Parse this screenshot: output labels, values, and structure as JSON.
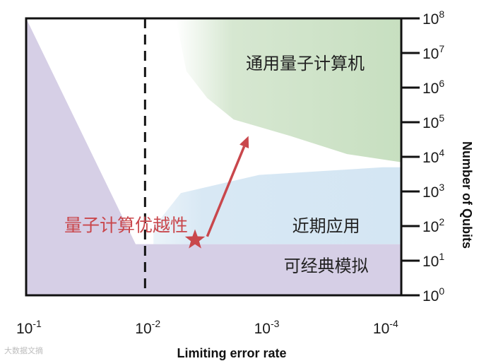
{
  "chart_data": {
    "type": "area",
    "xlabel": "Limiting error rate",
    "ylabel": "Number of Qubits",
    "x_scale": "log-reversed",
    "y_scale": "log",
    "xlim": [
      0.1,
      7e-05
    ],
    "ylim": [
      1,
      100000000
    ],
    "x_ticks": [
      {
        "value": 0.1,
        "base": "10",
        "exp": "-1"
      },
      {
        "value": 0.01,
        "base": "10",
        "exp": "-2"
      },
      {
        "value": 0.001,
        "base": "10",
        "exp": "-3"
      },
      {
        "value": 0.0001,
        "base": "10",
        "exp": "-4"
      }
    ],
    "y_ticks": [
      {
        "value": 1,
        "base": "10",
        "exp": "0"
      },
      {
        "value": 10,
        "base": "10",
        "exp": "1"
      },
      {
        "value": 100,
        "base": "10",
        "exp": "2"
      },
      {
        "value": 1000,
        "base": "10",
        "exp": "3"
      },
      {
        "value": 10000,
        "base": "10",
        "exp": "4"
      },
      {
        "value": 100000,
        "base": "10",
        "exp": "5"
      },
      {
        "value": 1000000,
        "base": "10",
        "exp": "6"
      },
      {
        "value": 10000000,
        "base": "10",
        "exp": "7"
      },
      {
        "value": 100000000,
        "base": "10",
        "exp": "8"
      }
    ],
    "regions": [
      {
        "name": "可经典模拟",
        "color": "#d6cfe6",
        "polygon": [
          [
            0.1,
            100000000
          ],
          [
            0.012,
            30
          ],
          [
            7e-05,
            30
          ],
          [
            7e-05,
            1
          ],
          [
            0.1,
            1
          ]
        ],
        "label_at": [
          0.0003,
          7
        ]
      },
      {
        "name": "近期应用",
        "color": "#d8e8f4",
        "polygon": [
          [
            0.0085,
            90
          ],
          [
            0.005,
            900
          ],
          [
            0.0011,
            3000
          ],
          [
            0.0001,
            5000
          ],
          [
            7e-05,
            5000
          ],
          [
            7e-05,
            30
          ],
          [
            0.0085,
            30
          ]
        ],
        "label_at": [
          0.0003,
          100
        ]
      },
      {
        "name": "通用量子计算机",
        "color": "#cfe3c9",
        "polygon": [
          [
            0.0055,
            100000000
          ],
          [
            0.0045,
            3000000
          ],
          [
            0.003,
            500000
          ],
          [
            0.0018,
            120000
          ],
          [
            0.0006,
            40000
          ],
          [
            0.0002,
            12000
          ],
          [
            7e-05,
            7000
          ],
          [
            7e-05,
            100000000
          ]
        ],
        "label_at": [
          0.00045,
          5000000
        ]
      }
    ],
    "threshold_line": {
      "x": 0.01,
      "style": "dashed",
      "color": "#111111"
    },
    "marker": {
      "label": "量子计算优越性",
      "x": 0.0038,
      "y": 40,
      "shape": "star",
      "color": "#c9474c"
    },
    "arrow": {
      "from": [
        0.003,
        50
      ],
      "to": [
        0.00135,
        40000
      ],
      "color": "#c9474c"
    },
    "grid": false,
    "legend": "none"
  },
  "watermark": {
    "text": "大数据文摘"
  }
}
